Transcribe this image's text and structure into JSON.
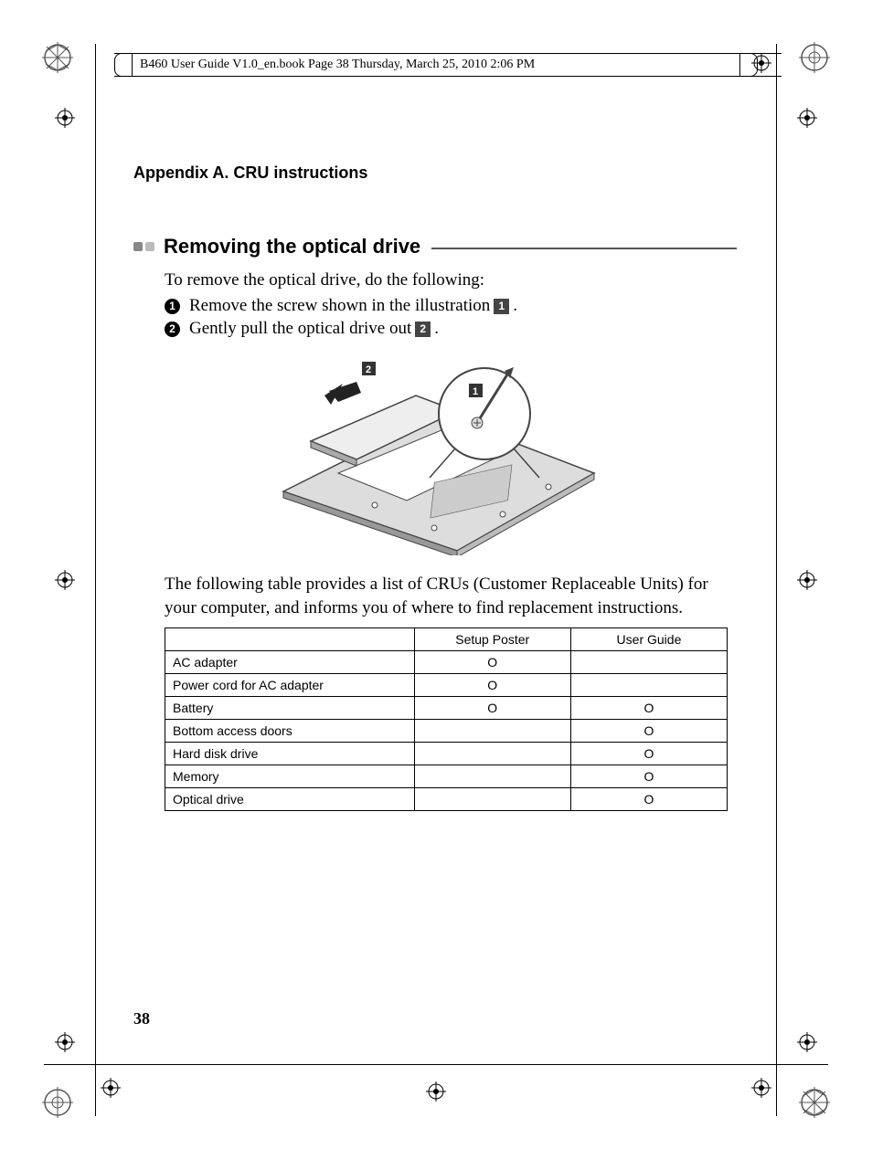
{
  "header_meta": "B460 User Guide V1.0_en.book  Page 38  Thursday, March 25, 2010  2:06 PM",
  "appendix_title": "Appendix A. CRU instructions",
  "section_title": "Removing the optical drive",
  "intro_text": "To remove the optical drive, do the following:",
  "steps": [
    {
      "num": "1",
      "text_before": "Remove the screw shown in the illustration ",
      "callout": "1",
      "text_after": "."
    },
    {
      "num": "2",
      "text_before": "Gently pull the optical drive out ",
      "callout": "2",
      "text_after": "."
    }
  ],
  "illus_callouts": {
    "a": "1",
    "b": "2"
  },
  "para2": "The following table provides a list of CRUs (Customer Replaceable Units) for your computer, and informs you of where to find replacement instructions.",
  "table": {
    "headers": [
      "",
      "Setup Poster",
      "User Guide"
    ],
    "mark": "O",
    "rows": [
      {
        "label": "AC adapter",
        "setup": true,
        "guide": false
      },
      {
        "label": "Power cord for AC adapter",
        "setup": true,
        "guide": false
      },
      {
        "label": "Battery",
        "setup": true,
        "guide": true
      },
      {
        "label": "Bottom access doors",
        "setup": false,
        "guide": true
      },
      {
        "label": "Hard disk drive",
        "setup": false,
        "guide": true
      },
      {
        "label": "Memory",
        "setup": false,
        "guide": true
      },
      {
        "label": "Optical drive",
        "setup": false,
        "guide": true
      }
    ]
  },
  "page_number": "38"
}
